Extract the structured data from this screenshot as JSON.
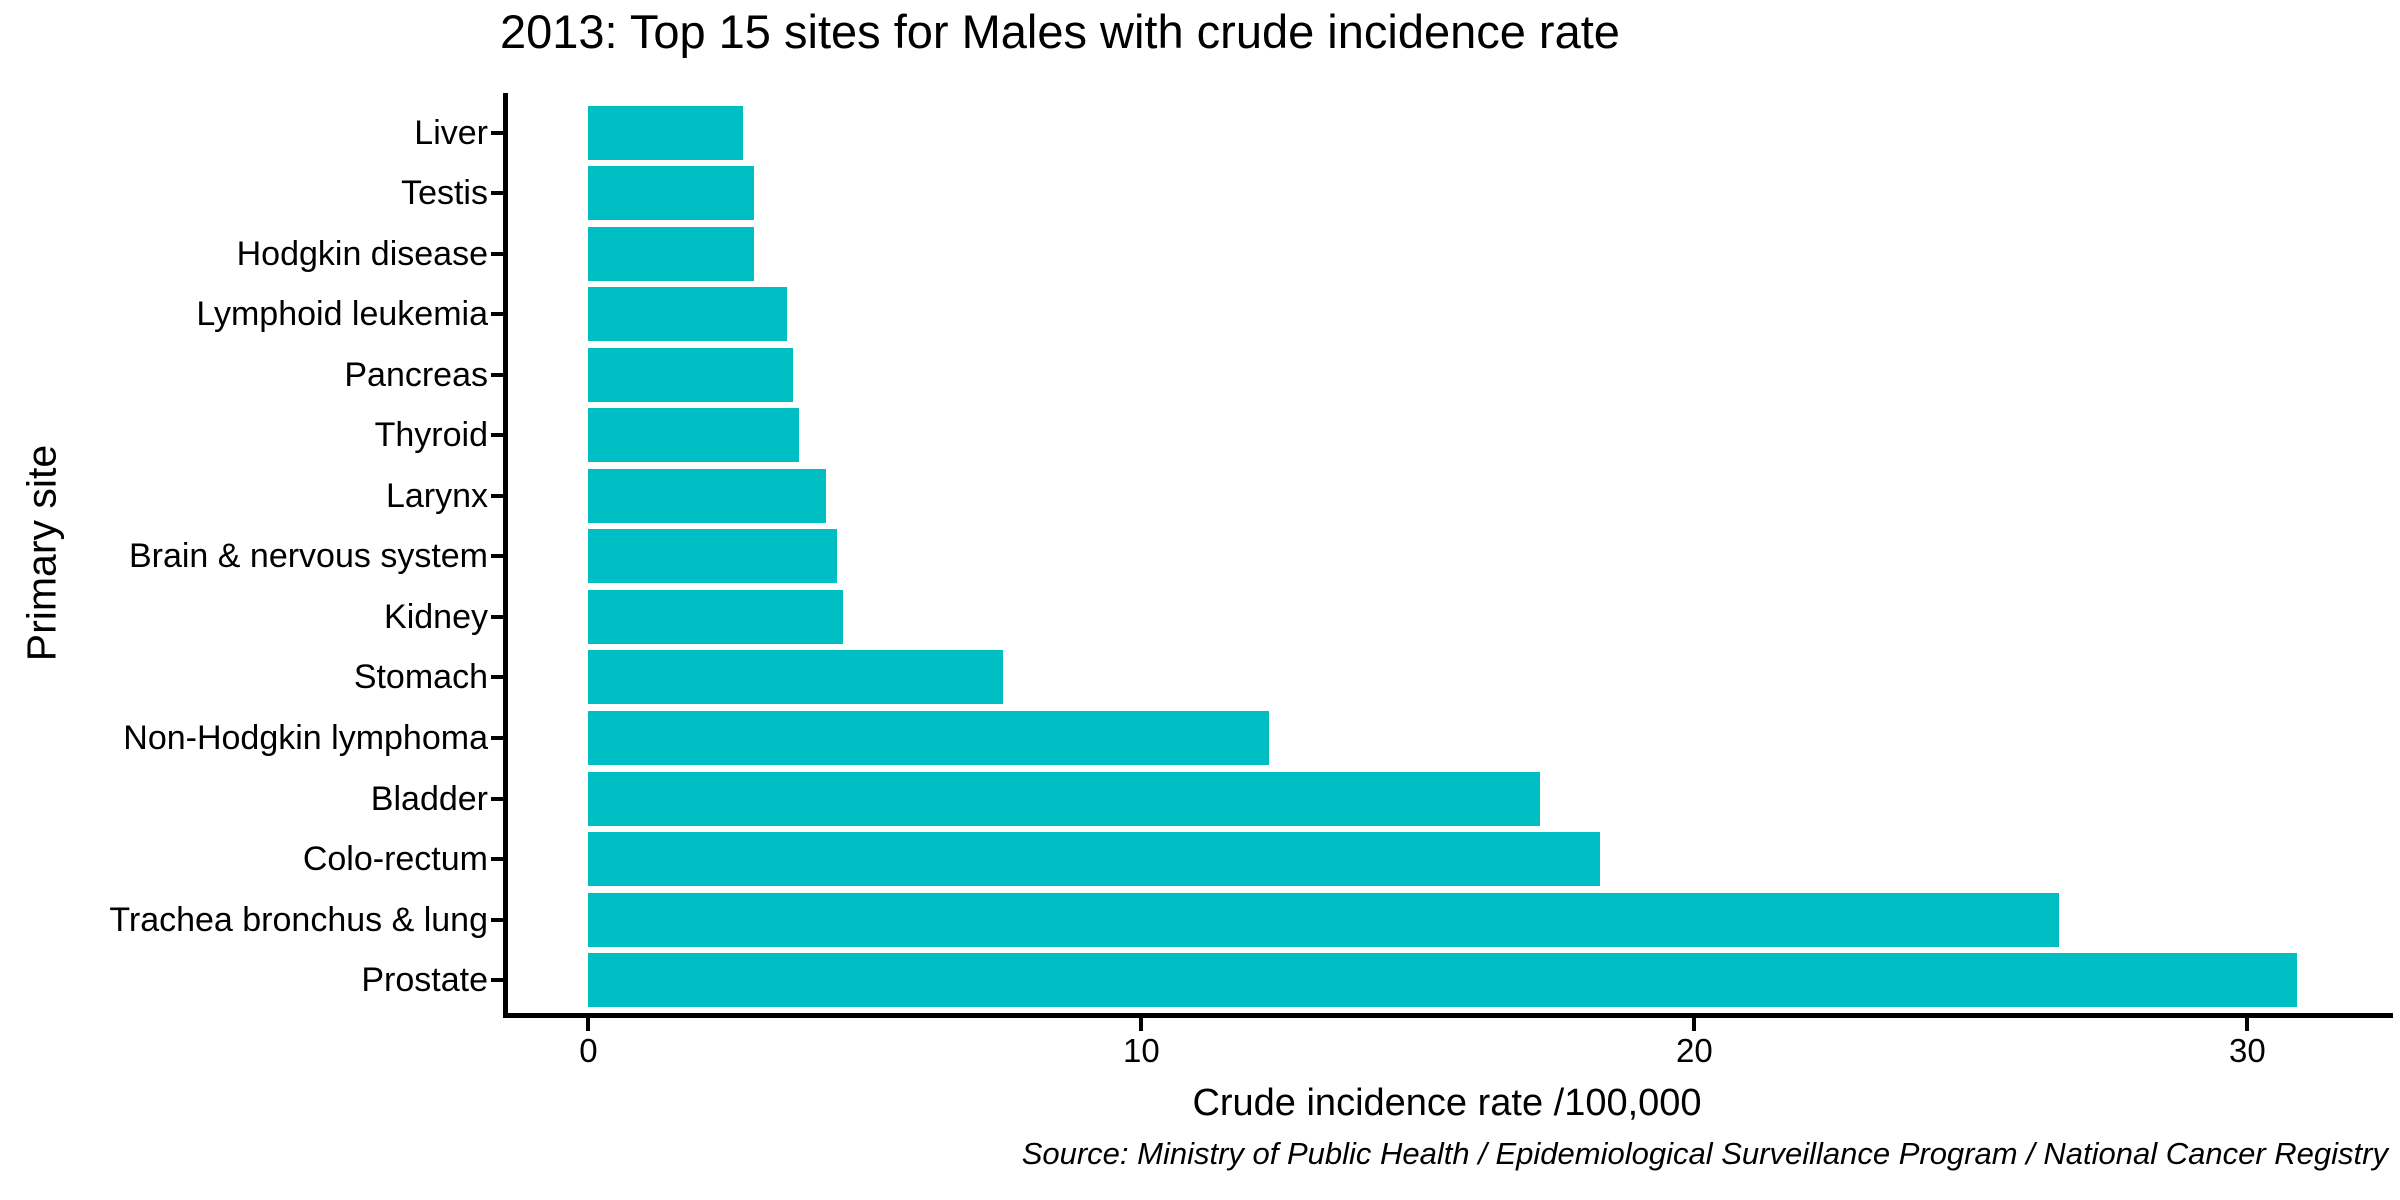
{
  "title": "2013: Top 15 sites for Males with crude incidence rate",
  "source_note": "Source: Ministry of Public Health / Epidemiological Surveillance Program / National Cancer Registry",
  "chart_data": {
    "type": "bar",
    "orientation": "horizontal",
    "title": "2013: Top 15 sites for Males with crude incidence rate",
    "xlabel": "Crude incidence rate /100,000",
    "ylabel": "Primary site",
    "categories_top_to_bottom": [
      "Liver",
      "Testis",
      "Hodgkin disease",
      "Lymphoid leukemia",
      "Pancreas",
      "Thyroid",
      "Larynx",
      "Brain & nervous system",
      "Kidney",
      "Stomach",
      "Non-Hodgkin lymphoma",
      "Bladder",
      "Colo-rectum",
      "Trachea bronchus & lung",
      "Prostate"
    ],
    "values": [
      2.8,
      3.0,
      3.0,
      3.6,
      3.7,
      3.8,
      4.3,
      4.5,
      4.6,
      7.5,
      12.3,
      17.2,
      18.3,
      26.6,
      30.9
    ],
    "xticks": [
      0,
      10,
      20,
      30
    ],
    "xlim": [
      0,
      32.5
    ],
    "grid": false,
    "legend": false,
    "bar_color": "#00BFC4",
    "axis_color": "#000000",
    "background_color": "#FFFFFF"
  }
}
